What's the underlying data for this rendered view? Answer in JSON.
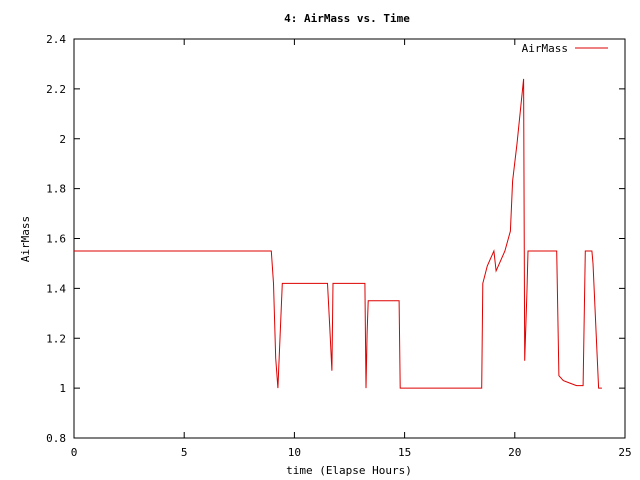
{
  "chart_data": {
    "type": "line",
    "title": "4: AirMass vs. Time",
    "xlabel": "time (Elapse Hours)",
    "ylabel": "AirMass",
    "xlim": [
      0,
      25
    ],
    "ylim": [
      0.8,
      2.4
    ],
    "xticks": [
      0,
      5,
      10,
      15,
      20,
      25
    ],
    "xtick_labels": [
      "0",
      "5",
      "10",
      "15",
      "20",
      "25"
    ],
    "yticks": [
      0.8,
      1.0,
      1.2,
      1.4,
      1.6,
      1.8,
      2.0,
      2.2,
      2.4
    ],
    "ytick_labels": [
      "0.8",
      "1",
      "1.2",
      "1.4",
      "1.6",
      "1.8",
      "2",
      "2.2",
      "2.4"
    ],
    "grid": false,
    "legend_position": "top-right",
    "series": [
      {
        "name": "AirMass",
        "color": "#dd0000",
        "x": [
          0,
          8.95,
          9.05,
          9.15,
          9.25,
          9.45,
          11.5,
          11.6,
          11.7,
          11.75,
          13.2,
          13.25,
          13.3,
          13.35,
          14.75,
          14.8,
          18.5,
          18.55,
          18.75,
          19.05,
          19.15,
          19.3,
          19.55,
          19.8,
          19.9,
          20.1,
          20.4,
          20.45,
          20.55,
          20.6,
          21.9,
          22,
          22.2,
          22.5,
          22.8,
          23.1,
          23.2,
          23.5,
          23.55,
          23.8,
          23.95
        ],
        "y": [
          1.55,
          1.55,
          1.42,
          1.12,
          1.0,
          1.42,
          1.42,
          1.25,
          1.07,
          1.42,
          1.42,
          1.0,
          1.22,
          1.35,
          1.35,
          1.0,
          1.0,
          1.42,
          1.49,
          1.55,
          1.47,
          1.5,
          1.55,
          1.63,
          1.83,
          1.98,
          2.24,
          1.11,
          1.38,
          1.55,
          1.55,
          1.05,
          1.03,
          1.02,
          1.01,
          1.01,
          1.55,
          1.55,
          1.5,
          1.0,
          1.0
        ]
      }
    ]
  }
}
